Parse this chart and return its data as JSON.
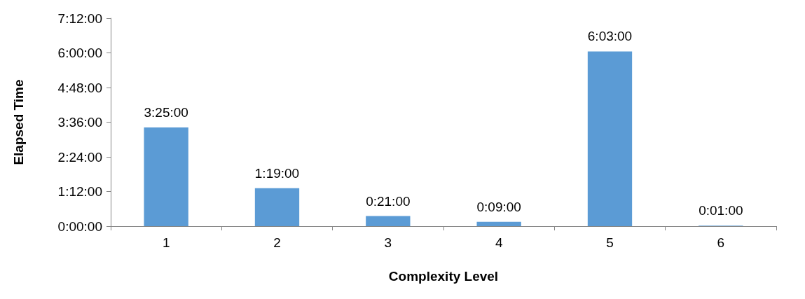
{
  "chart_data": {
    "type": "bar",
    "xlabel": "Complexity Level",
    "ylabel": "Elapsed Time",
    "categories": [
      "1",
      "2",
      "3",
      "4",
      "5",
      "6"
    ],
    "values": [
      3.4167,
      1.3167,
      0.35,
      0.15,
      6.05,
      0.0167
    ],
    "value_labels": [
      "3:25:00",
      "1:19:00",
      "0:21:00",
      "0:09:00",
      "6:03:00",
      "0:01:00"
    ],
    "color": "#5b9bd5",
    "ylim": [
      0,
      7.2
    ],
    "yticks": [
      {
        "value": 0,
        "label": "0:00:00"
      },
      {
        "value": 1.2,
        "label": "1:12:00"
      },
      {
        "value": 2.4,
        "label": "2:24:00"
      },
      {
        "value": 3.6,
        "label": "3:36:00"
      },
      {
        "value": 4.8,
        "label": "4:48:00"
      },
      {
        "value": 6,
        "label": "6:00:00"
      },
      {
        "value": 7.2,
        "label": "7:12:00"
      }
    ],
    "grid": false
  }
}
